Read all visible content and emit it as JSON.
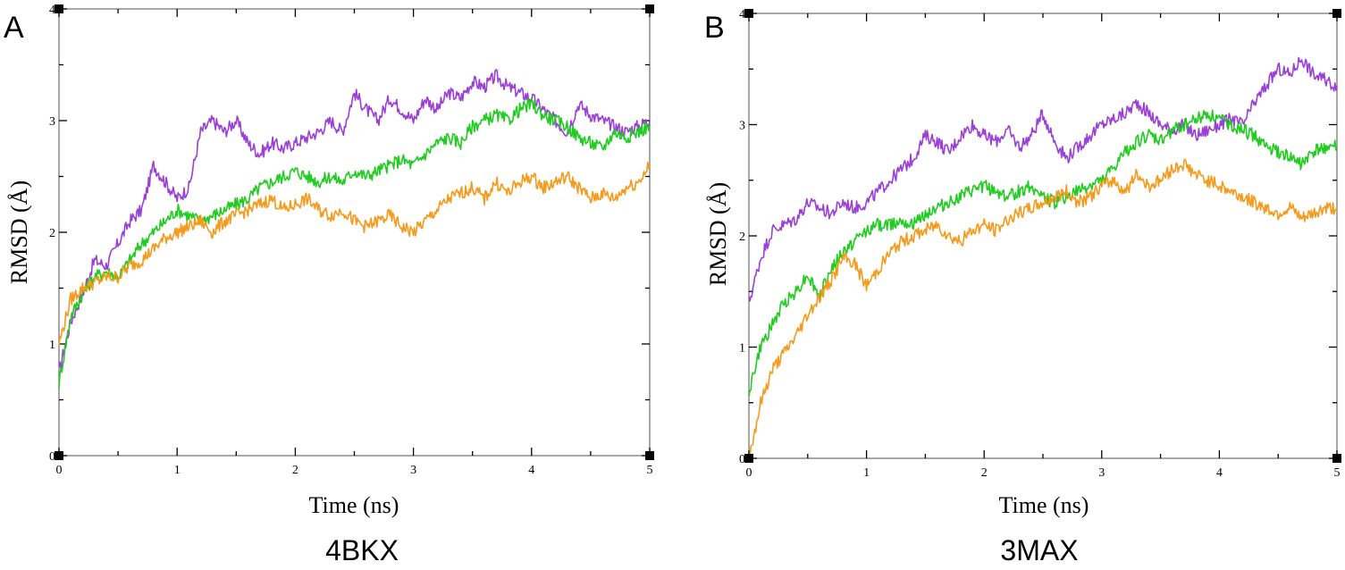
{
  "chart_data": [
    {
      "type": "line",
      "panel_label": "A",
      "caption": "4BKX",
      "xlabel": "Time (ns)",
      "ylabel": "RMSD (Å)",
      "xlim": [
        0,
        5
      ],
      "ylim": [
        0,
        4
      ],
      "xticks": [
        "0",
        "1",
        "2",
        "3",
        "4",
        "5"
      ],
      "yticks": [
        "0",
        "1",
        "2",
        "3",
        "4"
      ],
      "grid": false,
      "series": [
        {
          "color": "#9b3fd6",
          "x": [
            0,
            0.1,
            0.2,
            0.3,
            0.4,
            0.5,
            0.6,
            0.7,
            0.8,
            0.9,
            1.0,
            1.1,
            1.2,
            1.3,
            1.4,
            1.5,
            1.6,
            1.7,
            1.8,
            1.9,
            2.0,
            2.1,
            2.2,
            2.3,
            2.4,
            2.5,
            2.6,
            2.7,
            2.8,
            2.9,
            3.0,
            3.1,
            3.2,
            3.3,
            3.4,
            3.5,
            3.6,
            3.7,
            3.8,
            3.9,
            4.0,
            4.1,
            4.2,
            4.3,
            4.4,
            4.5,
            4.6,
            4.7,
            4.8,
            4.9,
            5.0
          ],
          "y": [
            0.75,
            1.2,
            1.45,
            1.75,
            1.7,
            1.9,
            2.1,
            2.2,
            2.6,
            2.45,
            2.3,
            2.4,
            2.9,
            3.0,
            2.9,
            3.0,
            2.8,
            2.7,
            2.8,
            2.75,
            2.8,
            2.85,
            2.9,
            3.0,
            2.9,
            3.25,
            3.1,
            3.0,
            3.2,
            3.1,
            3.0,
            3.2,
            3.1,
            3.25,
            3.2,
            3.35,
            3.3,
            3.4,
            3.3,
            3.25,
            3.2,
            3.1,
            3.0,
            2.9,
            3.15,
            3.05,
            3.0,
            2.95,
            2.9,
            2.95,
            3.0
          ]
        },
        {
          "color": "#1fcc1f",
          "x": [
            0,
            0.1,
            0.2,
            0.3,
            0.4,
            0.5,
            0.6,
            0.7,
            0.8,
            0.9,
            1.0,
            1.1,
            1.2,
            1.3,
            1.4,
            1.5,
            1.6,
            1.7,
            1.8,
            1.9,
            2.0,
            2.1,
            2.2,
            2.3,
            2.4,
            2.5,
            2.6,
            2.7,
            2.8,
            2.9,
            3.0,
            3.1,
            3.2,
            3.3,
            3.4,
            3.5,
            3.6,
            3.7,
            3.8,
            3.9,
            4.0,
            4.1,
            4.2,
            4.3,
            4.4,
            4.5,
            4.6,
            4.7,
            4.8,
            4.9,
            5.0
          ],
          "y": [
            0.65,
            1.25,
            1.45,
            1.6,
            1.65,
            1.6,
            1.75,
            1.9,
            2.0,
            2.1,
            2.2,
            2.15,
            2.1,
            2.15,
            2.2,
            2.25,
            2.3,
            2.4,
            2.45,
            2.5,
            2.55,
            2.5,
            2.45,
            2.5,
            2.45,
            2.55,
            2.5,
            2.55,
            2.6,
            2.65,
            2.6,
            2.7,
            2.8,
            2.85,
            2.8,
            2.95,
            3.0,
            3.05,
            3.0,
            3.1,
            3.15,
            3.05,
            3.0,
            2.95,
            2.85,
            2.8,
            2.75,
            2.9,
            2.85,
            2.9,
            2.95
          ]
        },
        {
          "color": "#f59a1a",
          "x": [
            0,
            0.1,
            0.2,
            0.3,
            0.4,
            0.5,
            0.6,
            0.7,
            0.8,
            0.9,
            1.0,
            1.1,
            1.2,
            1.3,
            1.4,
            1.5,
            1.6,
            1.7,
            1.8,
            1.9,
            2.0,
            2.1,
            2.2,
            2.3,
            2.4,
            2.5,
            2.6,
            2.7,
            2.8,
            2.9,
            3.0,
            3.1,
            3.2,
            3.3,
            3.4,
            3.5,
            3.6,
            3.7,
            3.8,
            3.9,
            4.0,
            4.1,
            4.2,
            4.3,
            4.4,
            4.5,
            4.6,
            4.7,
            4.8,
            4.9,
            5.0
          ],
          "y": [
            1.0,
            1.4,
            1.5,
            1.55,
            1.6,
            1.6,
            1.7,
            1.75,
            1.85,
            1.95,
            2.0,
            2.05,
            2.1,
            2.0,
            2.1,
            2.15,
            2.2,
            2.25,
            2.3,
            2.2,
            2.25,
            2.3,
            2.2,
            2.15,
            2.2,
            2.1,
            2.05,
            2.1,
            2.15,
            2.05,
            2.0,
            2.1,
            2.2,
            2.3,
            2.35,
            2.4,
            2.3,
            2.45,
            2.35,
            2.45,
            2.5,
            2.4,
            2.45,
            2.5,
            2.4,
            2.3,
            2.35,
            2.3,
            2.4,
            2.45,
            2.6
          ]
        }
      ]
    },
    {
      "type": "line",
      "panel_label": "B",
      "caption": "3MAX",
      "xlabel": "Time (ns)",
      "ylabel": "RMSD (Å)",
      "xlim": [
        0,
        5
      ],
      "ylim": [
        0,
        4
      ],
      "xticks": [
        "0",
        "1",
        "2",
        "3",
        "4",
        "5"
      ],
      "yticks": [
        "0",
        "1",
        "2",
        "3",
        "4"
      ],
      "grid": false,
      "series": [
        {
          "color": "#9b3fd6",
          "x": [
            0,
            0.1,
            0.2,
            0.3,
            0.4,
            0.5,
            0.6,
            0.7,
            0.8,
            0.9,
            1.0,
            1.1,
            1.2,
            1.3,
            1.4,
            1.5,
            1.6,
            1.7,
            1.8,
            1.9,
            2.0,
            2.1,
            2.2,
            2.3,
            2.4,
            2.5,
            2.6,
            2.7,
            2.8,
            2.9,
            3.0,
            3.1,
            3.2,
            3.3,
            3.4,
            3.5,
            3.6,
            3.7,
            3.8,
            3.9,
            4.0,
            4.1,
            4.2,
            4.3,
            4.4,
            4.5,
            4.6,
            4.7,
            4.8,
            4.9,
            5.0
          ],
          "y": [
            1.4,
            1.8,
            2.05,
            2.1,
            2.15,
            2.3,
            2.25,
            2.2,
            2.3,
            2.25,
            2.3,
            2.4,
            2.5,
            2.6,
            2.7,
            2.9,
            2.85,
            2.75,
            2.9,
            3.0,
            2.9,
            2.85,
            2.95,
            2.8,
            2.9,
            3.1,
            2.85,
            2.7,
            2.8,
            2.9,
            3.0,
            3.05,
            3.1,
            3.2,
            3.1,
            3.0,
            2.95,
            3.0,
            2.9,
            2.95,
            3.0,
            3.05,
            3.0,
            3.2,
            3.35,
            3.5,
            3.45,
            3.6,
            3.45,
            3.4,
            3.35
          ]
        },
        {
          "color": "#1fcc1f",
          "x": [
            0,
            0.1,
            0.2,
            0.3,
            0.4,
            0.5,
            0.6,
            0.7,
            0.8,
            0.9,
            1.0,
            1.1,
            1.2,
            1.3,
            1.4,
            1.5,
            1.6,
            1.7,
            1.8,
            1.9,
            2.0,
            2.1,
            2.2,
            2.3,
            2.4,
            2.5,
            2.6,
            2.7,
            2.8,
            2.9,
            3.0,
            3.1,
            3.2,
            3.3,
            3.4,
            3.5,
            3.6,
            3.7,
            3.8,
            3.9,
            4.0,
            4.1,
            4.2,
            4.3,
            4.4,
            4.5,
            4.6,
            4.7,
            4.8,
            4.9,
            5.0
          ],
          "y": [
            0.6,
            1.0,
            1.2,
            1.4,
            1.5,
            1.65,
            1.45,
            1.7,
            1.85,
            1.95,
            2.05,
            2.1,
            2.1,
            2.15,
            2.1,
            2.2,
            2.25,
            2.3,
            2.35,
            2.4,
            2.45,
            2.4,
            2.35,
            2.4,
            2.45,
            2.35,
            2.3,
            2.35,
            2.4,
            2.45,
            2.5,
            2.6,
            2.75,
            2.85,
            2.9,
            2.85,
            2.95,
            3.0,
            3.05,
            3.1,
            3.05,
            3.0,
            2.95,
            2.9,
            2.8,
            2.75,
            2.7,
            2.65,
            2.75,
            2.8,
            2.8
          ]
        },
        {
          "color": "#f59a1a",
          "x": [
            0,
            0.1,
            0.2,
            0.3,
            0.4,
            0.5,
            0.6,
            0.7,
            0.8,
            0.9,
            1.0,
            1.1,
            1.2,
            1.3,
            1.4,
            1.5,
            1.6,
            1.7,
            1.8,
            1.9,
            2.0,
            2.1,
            2.2,
            2.3,
            2.4,
            2.5,
            2.6,
            2.7,
            2.8,
            2.9,
            3.0,
            3.1,
            3.2,
            3.3,
            3.4,
            3.5,
            3.6,
            3.7,
            3.8,
            3.9,
            4.0,
            4.1,
            4.2,
            4.3,
            4.4,
            4.5,
            4.6,
            4.7,
            4.8,
            4.9,
            5.0
          ],
          "y": [
            0.0,
            0.5,
            0.8,
            0.95,
            1.1,
            1.3,
            1.45,
            1.6,
            1.8,
            1.75,
            1.55,
            1.7,
            1.85,
            1.95,
            2.0,
            2.05,
            2.1,
            2.0,
            1.95,
            2.05,
            2.1,
            2.05,
            2.15,
            2.2,
            2.25,
            2.3,
            2.35,
            2.4,
            2.3,
            2.35,
            2.45,
            2.5,
            2.4,
            2.55,
            2.45,
            2.5,
            2.6,
            2.65,
            2.55,
            2.5,
            2.45,
            2.4,
            2.35,
            2.3,
            2.25,
            2.2,
            2.25,
            2.15,
            2.2,
            2.25,
            2.25
          ]
        }
      ]
    }
  ]
}
